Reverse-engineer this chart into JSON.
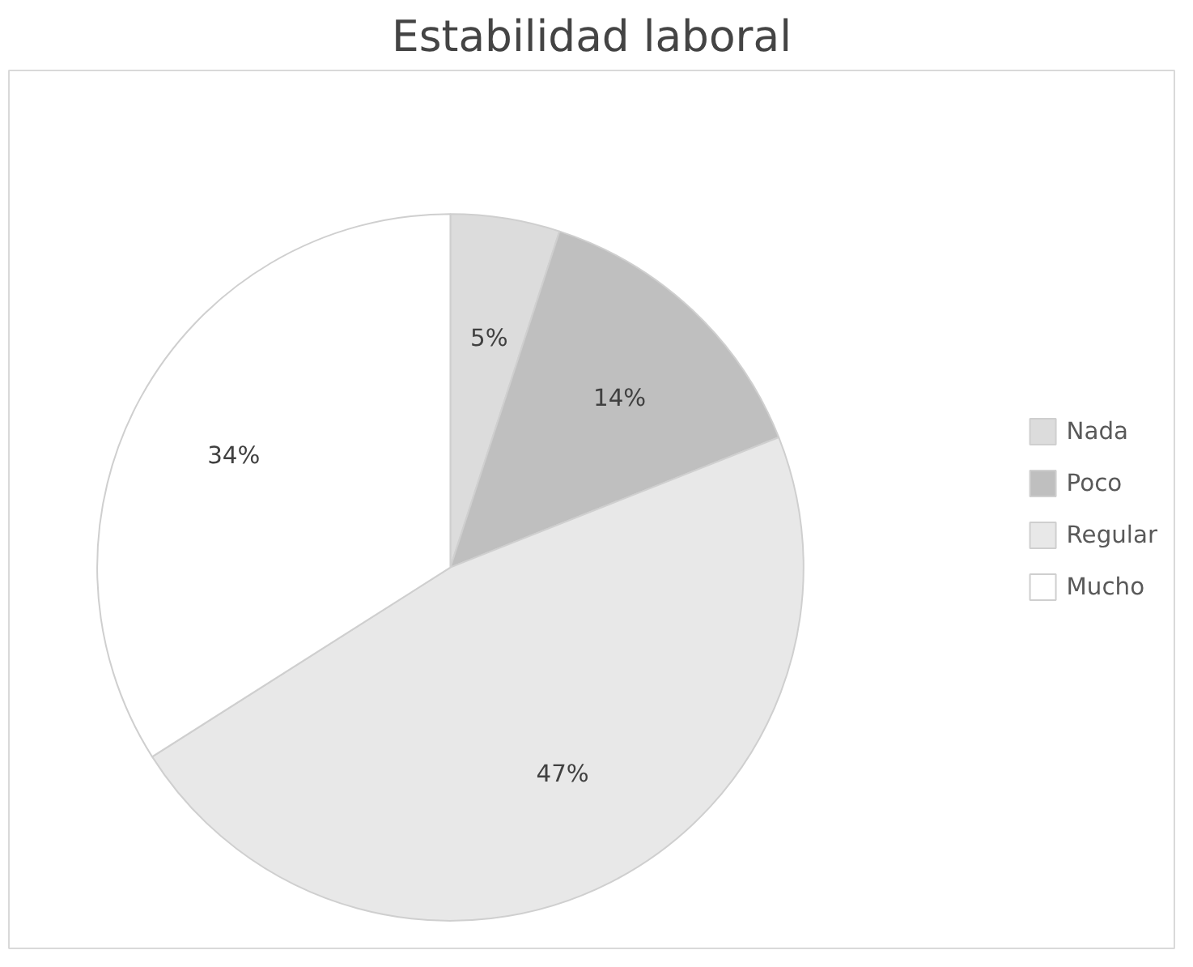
{
  "chart_data": {
    "type": "pie",
    "title": "Estabilidad laboral",
    "categories": [
      "Nada",
      "Poco",
      "Regular",
      "Mucho"
    ],
    "values": [
      5,
      14,
      47,
      34
    ],
    "colors": [
      "#dcdcdc",
      "#bfbfbf",
      "#e8e8e8",
      "#ffffff"
    ],
    "value_labels": [
      "5%",
      "14%",
      "47%",
      "34%"
    ],
    "legend": "right"
  }
}
